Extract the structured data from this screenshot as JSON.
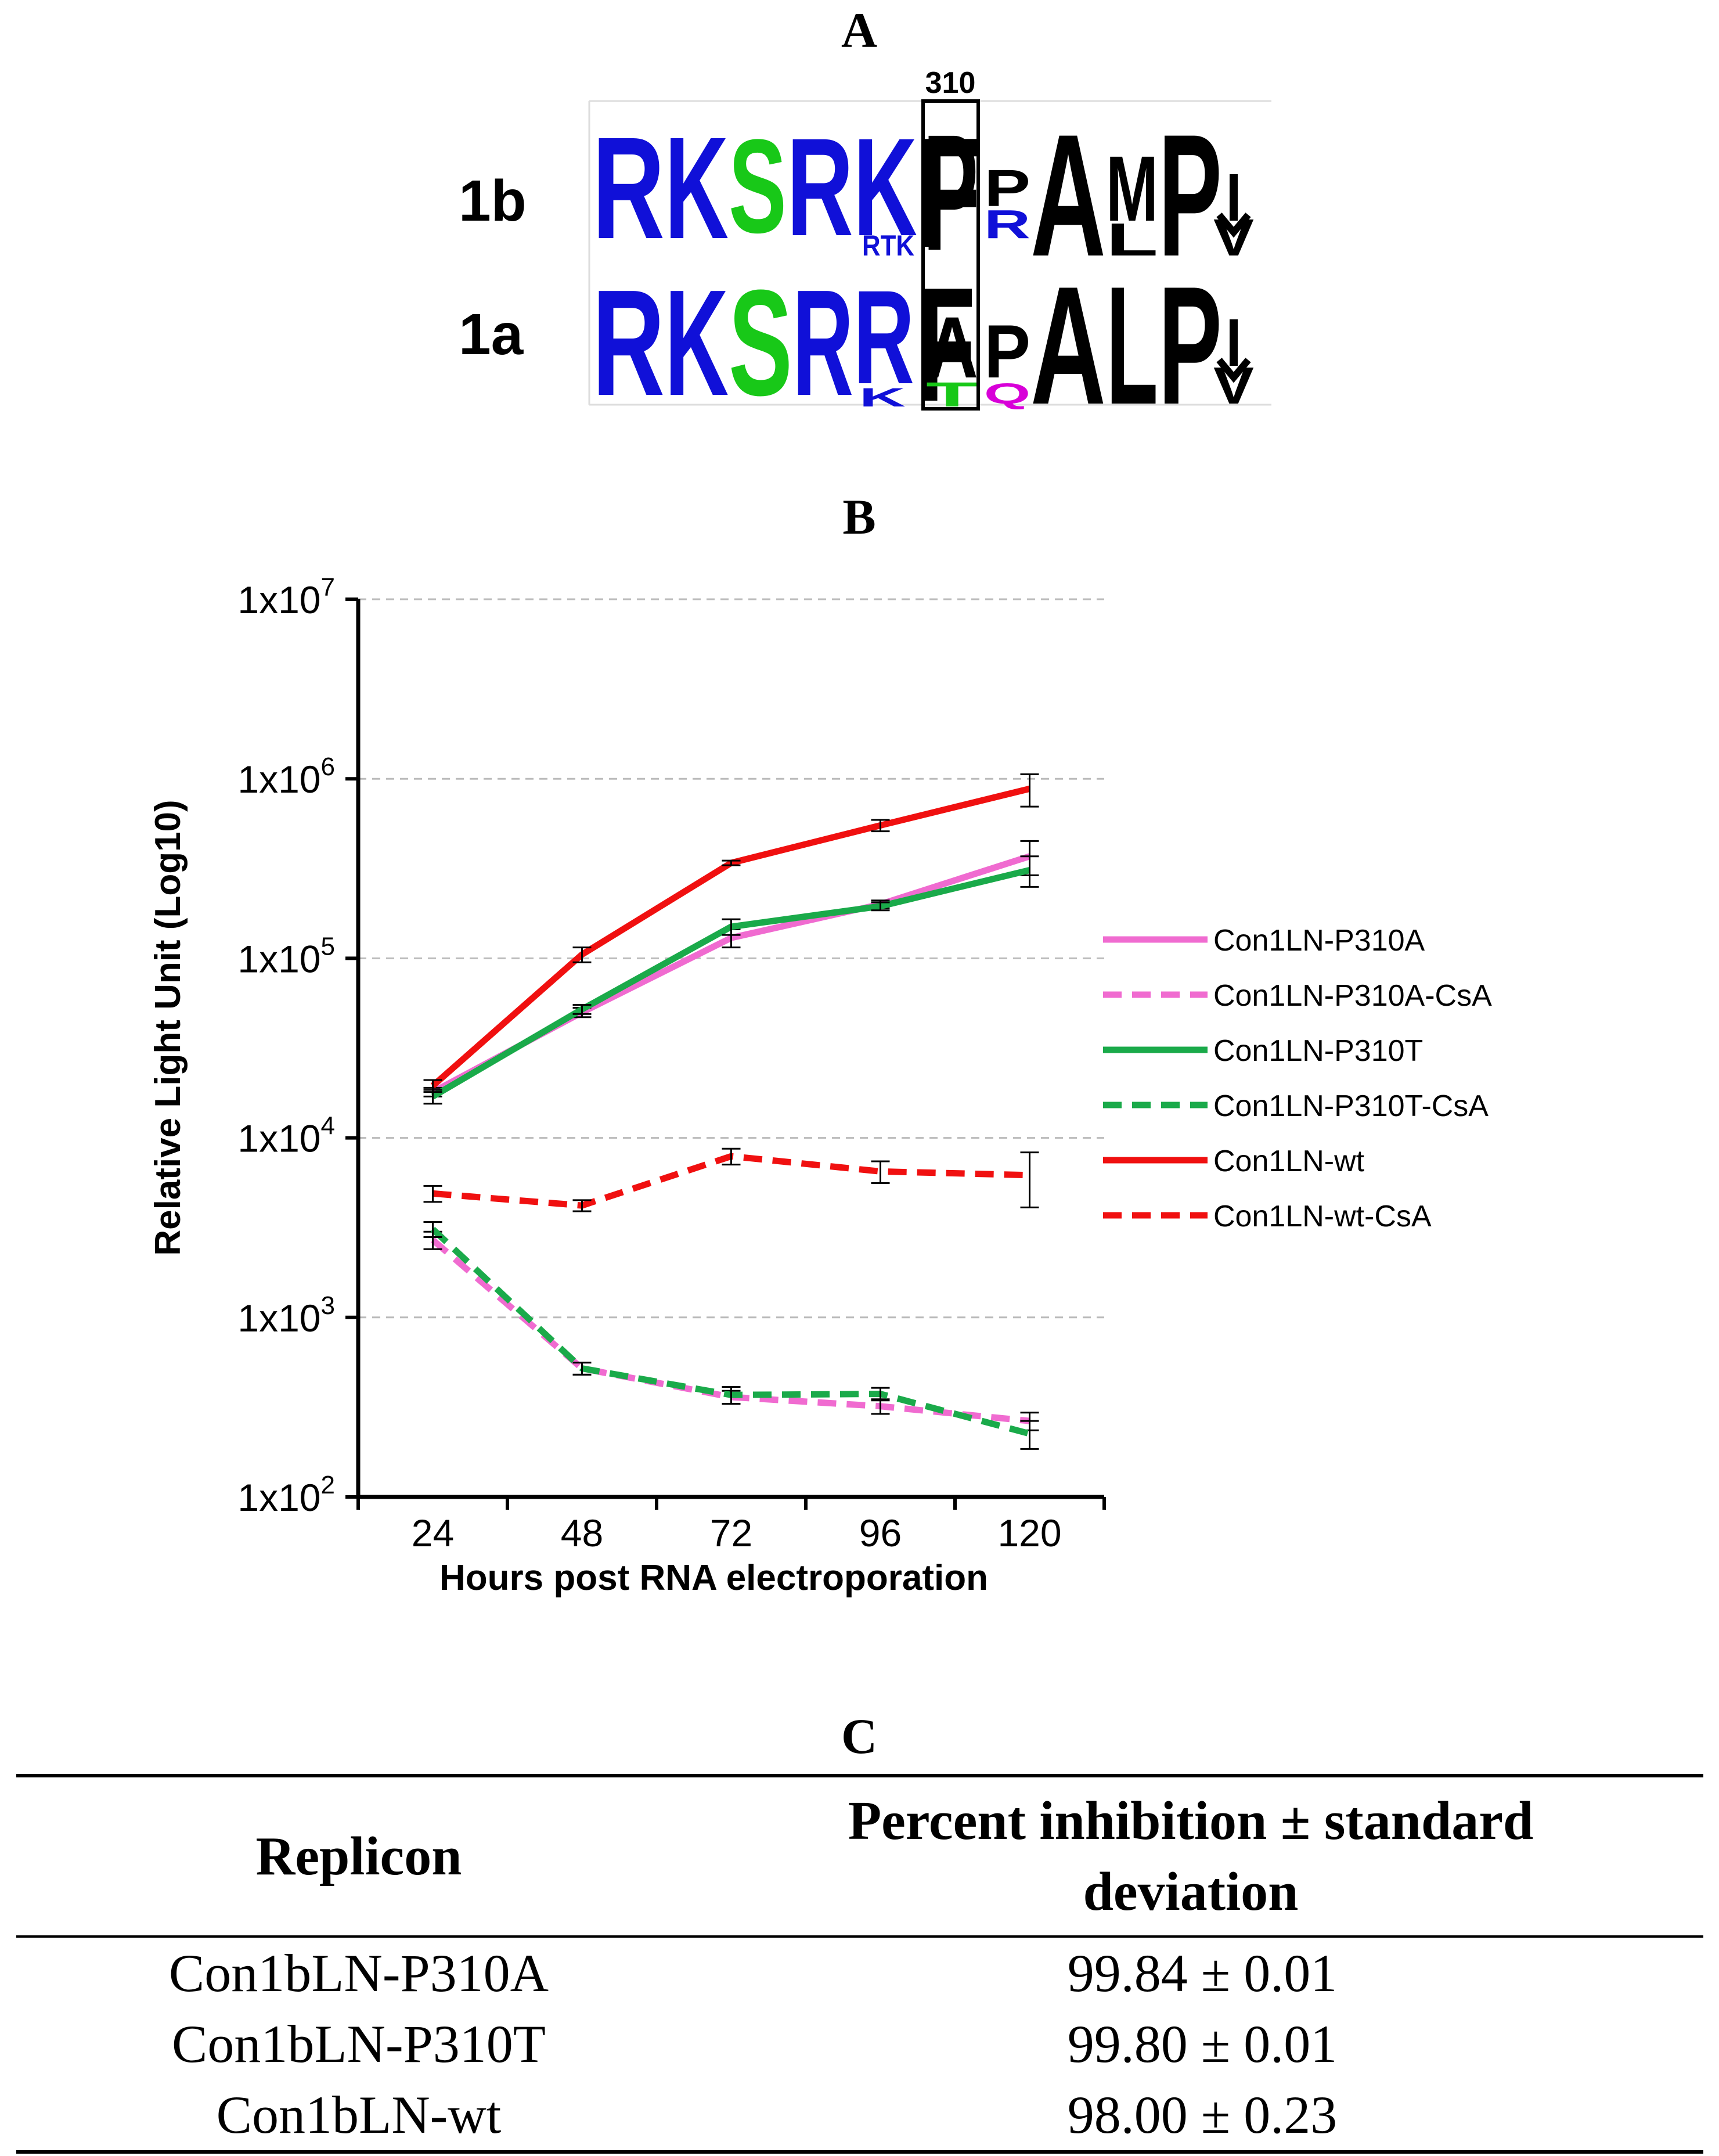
{
  "panels": {
    "a": "A",
    "b": "B",
    "c": "C"
  },
  "logo": {
    "position_label": "310",
    "rows": [
      {
        "name": "1b",
        "main": "RKSRKFPPAMP",
        "sub": "RTK  R L",
        "arrow": "V"
      },
      {
        "name": "1a",
        "main": "RKSRRFAPALP",
        "sub": "K TQ",
        "arrow": "V"
      }
    ]
  },
  "colors": {
    "pink": "#f06bd0",
    "green": "#1aaa4a",
    "red": "#f01010",
    "logo_blue": "#1010d8",
    "logo_green": "#18c818",
    "logo_magenta": "#d800d8"
  },
  "chart_data": {
    "type": "line",
    "scale": "log10",
    "xlabel": "Hours post RNA electroporation",
    "ylabel": "Relative Light Unit (Log10)",
    "categories": [
      24,
      48,
      72,
      96,
      120
    ],
    "ylim": [
      100,
      10000000
    ],
    "yticks": [
      {
        "base": "1x10",
        "exp": "2",
        "value": 100
      },
      {
        "base": "1x10",
        "exp": "3",
        "value": 1000
      },
      {
        "base": "1x10",
        "exp": "4",
        "value": 10000
      },
      {
        "base": "1x10",
        "exp": "5",
        "value": 100000
      },
      {
        "base": "1x10",
        "exp": "6",
        "value": 1000000
      },
      {
        "base": "1x10",
        "exp": "7",
        "value": 10000000
      }
    ],
    "legend_position": "right",
    "series": [
      {
        "name": "Con1LN-P310A",
        "color": "#f06bd0",
        "dashed": false,
        "values": [
          18000,
          50000,
          130000,
          200000,
          370000
        ],
        "err": [
          1000,
          3000,
          15000,
          10000,
          80000
        ]
      },
      {
        "name": "Con1LN-P310A-CsA",
        "color": "#f06bd0",
        "dashed": true,
        "values": [
          2700,
          520,
          360,
          320,
          265
        ],
        "err": [
          300,
          40,
          30,
          30,
          30
        ]
      },
      {
        "name": "Con1LN-P310T",
        "color": "#1aaa4a",
        "dashed": false,
        "values": [
          17000,
          52000,
          150000,
          195000,
          310000
        ],
        "err": [
          1500,
          3000,
          15000,
          10000,
          60000
        ]
      },
      {
        "name": "Con1LN-P310T-CsA",
        "color": "#1aaa4a",
        "dashed": true,
        "values": [
          3100,
          520,
          370,
          375,
          225
        ],
        "err": [
          300,
          40,
          40,
          30,
          40
        ]
      },
      {
        "name": "Con1LN-wt",
        "color": "#f01010",
        "dashed": false,
        "values": [
          19500,
          105000,
          340000,
          550000,
          880000
        ],
        "err": [
          1500,
          10000,
          10000,
          40000,
          180000
        ]
      },
      {
        "name": "Con1LN-wt-CsA",
        "color": "#f01010",
        "dashed": true,
        "values": [
          4900,
          4200,
          7900,
          6500,
          6200
        ],
        "err": [
          500,
          300,
          800,
          900,
          2100
        ]
      }
    ]
  },
  "table": {
    "headers": [
      "Replicon",
      "Percent inhibition ± standard deviation"
    ],
    "rows": [
      {
        "replicon": "Con1bLN-P310A",
        "value": "99.84 ± 0.01"
      },
      {
        "replicon": "Con1bLN-P310T",
        "value": "99.80 ± 0.01"
      },
      {
        "replicon": "Con1bLN-wt",
        "value": "98.00 ± 0.23"
      }
    ]
  }
}
